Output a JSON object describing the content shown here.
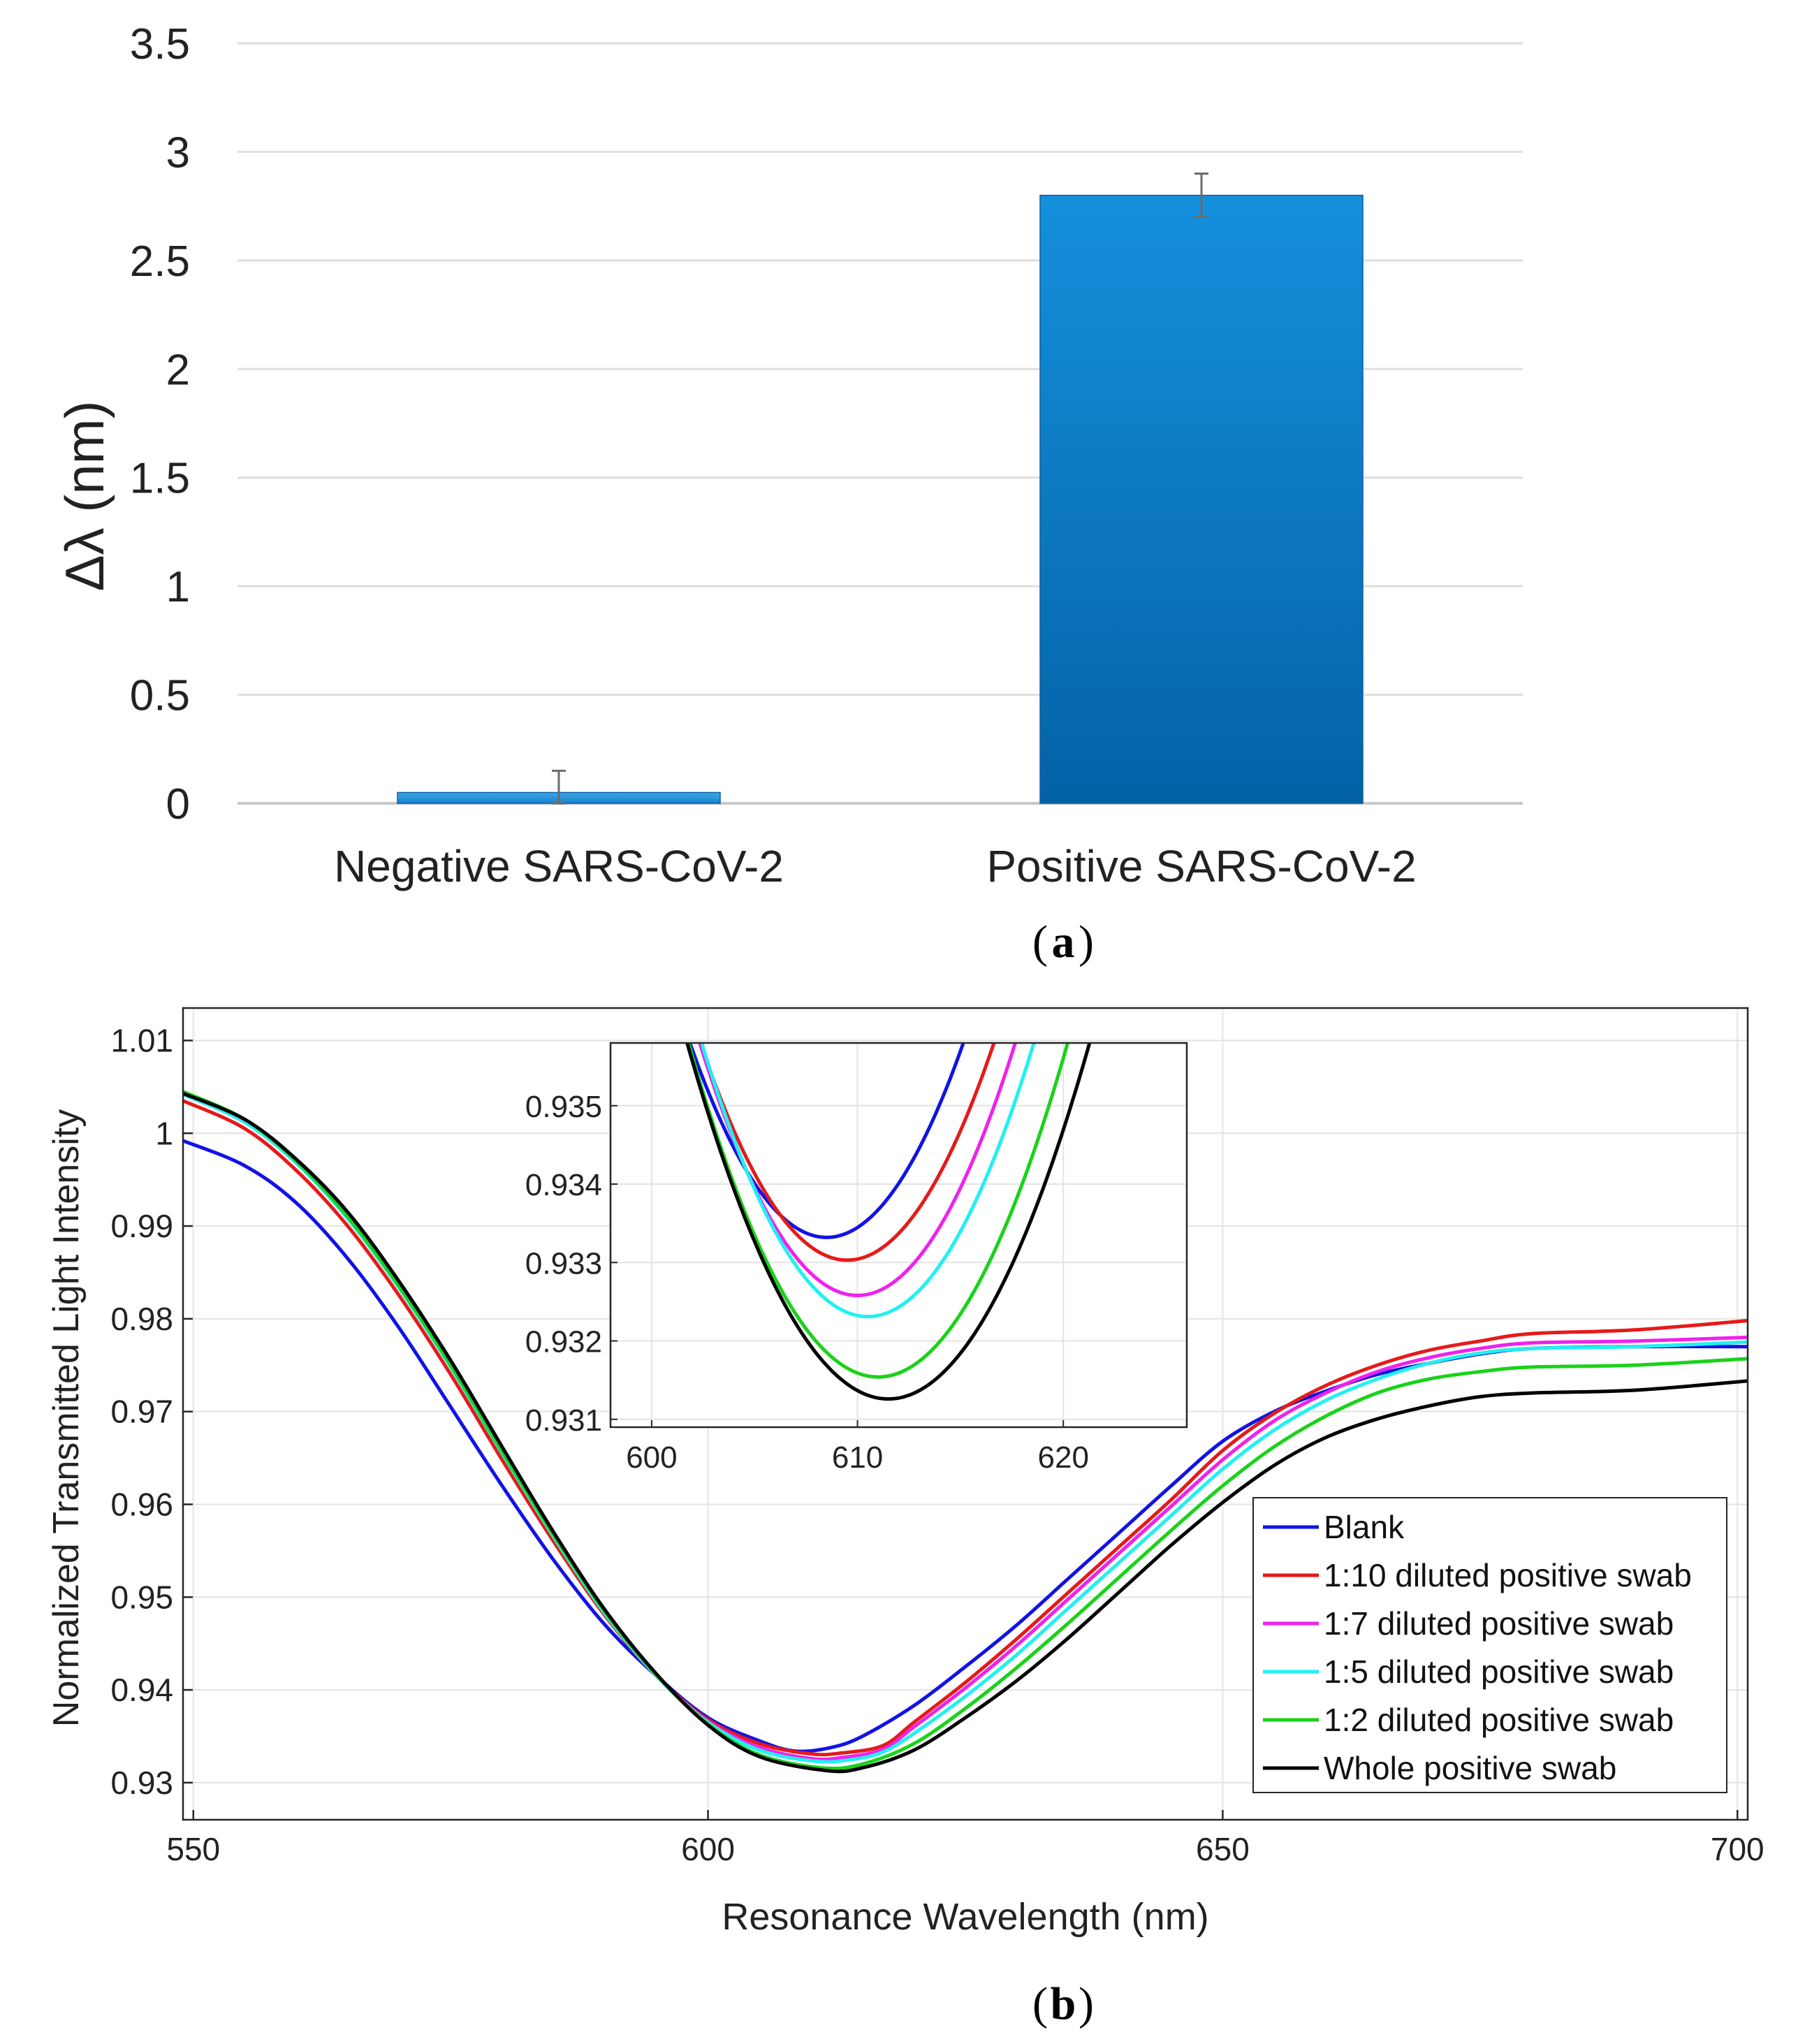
{
  "chart_data": [
    {
      "type": "bar",
      "panel_label": "a",
      "title": "",
      "xlabel": "",
      "ylabel": "Δλ (nm)",
      "ylim": [
        0,
        3.5
      ],
      "yticks": [
        "0",
        "0.5",
        "1",
        "1.5",
        "2",
        "2.5",
        "3",
        "3.5"
      ],
      "categories": [
        "Negative SARS-CoV-2",
        "Positive SARS-CoV-2"
      ],
      "values": [
        0.05,
        2.8
      ],
      "error": [
        0.1,
        0.1
      ],
      "grid": true,
      "bar_color": "#0a78c8"
    },
    {
      "type": "line",
      "panel_label": "b",
      "title": "",
      "xlabel": "Resonance Wavelength (nm)",
      "ylabel": "Normalized Transmitted Light Intensity",
      "xlim": [
        549,
        701
      ],
      "ylim": [
        0.926,
        1.0135
      ],
      "xticks": [
        "550",
        "600",
        "650",
        "700"
      ],
      "yticks": [
        "0.93",
        "0.94",
        "0.95",
        "0.96",
        "0.97",
        "0.98",
        "0.99",
        "1",
        "1.01"
      ],
      "grid": true,
      "legend_position": "bottom-right",
      "series": [
        {
          "name": "Blank",
          "color": "#1212e6",
          "x": [
            549,
            555,
            560,
            565,
            570,
            575,
            580,
            585,
            590,
            595,
            600,
            605,
            608.5,
            612,
            615,
            620,
            625,
            630,
            635,
            640,
            645,
            650,
            655,
            660,
            665,
            670,
            675,
            680,
            690,
            701
          ],
          "y": [
            0.9992,
            0.9965,
            0.9925,
            0.9865,
            0.979,
            0.9705,
            0.962,
            0.954,
            0.947,
            0.9415,
            0.937,
            0.9345,
            0.9334,
            0.9338,
            0.935,
            0.9383,
            0.9425,
            0.947,
            0.952,
            0.957,
            0.962,
            0.9668,
            0.97,
            0.9722,
            0.974,
            0.9752,
            0.9762,
            0.9768,
            0.977,
            0.977
          ]
        },
        {
          "name": "1:10 diluted positive swab",
          "color": "#e61a1a",
          "x": [
            549,
            555,
            560,
            565,
            570,
            575,
            580,
            585,
            590,
            595,
            600,
            605,
            610,
            613,
            617,
            620,
            625,
            630,
            635,
            640,
            645,
            650,
            655,
            660,
            665,
            670,
            675,
            680,
            690,
            701
          ],
          "y": [
            1.0035,
            1.0005,
            0.996,
            0.99,
            0.9825,
            0.974,
            0.9648,
            0.956,
            0.948,
            0.9415,
            0.9368,
            0.9342,
            0.9331,
            0.9332,
            0.934,
            0.9365,
            0.9408,
            0.9455,
            0.9505,
            0.9555,
            0.9605,
            0.9658,
            0.9698,
            0.9728,
            0.975,
            0.9766,
            0.9776,
            0.9784,
            0.9788,
            0.9798
          ]
        },
        {
          "name": "1:7 diluted positive swab",
          "color": "#ee22ee",
          "x": [
            549,
            555,
            560,
            565,
            570,
            575,
            580,
            585,
            590,
            595,
            600,
            605,
            610,
            613,
            617,
            620,
            625,
            630,
            635,
            640,
            645,
            650,
            655,
            660,
            665,
            670,
            675,
            680,
            690,
            701
          ],
          "y": [
            1.0042,
            1.0012,
            0.9968,
            0.9908,
            0.9833,
            0.9748,
            0.9655,
            0.9565,
            0.9482,
            0.9415,
            0.9366,
            0.9338,
            0.9326,
            0.9327,
            0.9336,
            0.936,
            0.9402,
            0.9448,
            0.9498,
            0.9548,
            0.9598,
            0.9648,
            0.969,
            0.972,
            0.9743,
            0.9758,
            0.9768,
            0.9774,
            0.9776,
            0.978
          ]
        },
        {
          "name": "1:5 diluted positive swab",
          "color": "#22f0f0",
          "x": [
            549,
            555,
            560,
            565,
            570,
            575,
            580,
            585,
            590,
            595,
            600,
            605,
            610.5,
            614,
            617,
            620,
            625,
            630,
            635,
            640,
            645,
            650,
            655,
            660,
            665,
            670,
            675,
            680,
            690,
            701
          ],
          "y": [
            1.0042,
            1.0012,
            0.9968,
            0.9908,
            0.9833,
            0.9748,
            0.9655,
            0.9565,
            0.9482,
            0.9415,
            0.9365,
            0.9335,
            0.9323,
            0.9325,
            0.9333,
            0.9353,
            0.9393,
            0.9438,
            0.9488,
            0.9538,
            0.9588,
            0.9638,
            0.968,
            0.9712,
            0.9735,
            0.9752,
            0.9763,
            0.9768,
            0.977,
            0.9775
          ]
        },
        {
          "name": "1:2 diluted positive swab",
          "color": "#1ad21a",
          "x": [
            549,
            555,
            560,
            565,
            570,
            575,
            580,
            585,
            590,
            595,
            600,
            605,
            611,
            615,
            620,
            625,
            630,
            635,
            640,
            645,
            650,
            655,
            660,
            665,
            670,
            675,
            680,
            690,
            701
          ],
          "y": [
            1.0045,
            1.0015,
            0.997,
            0.991,
            0.9835,
            0.975,
            0.9657,
            0.9567,
            0.9484,
            0.9416,
            0.9363,
            0.933,
            0.9316,
            0.932,
            0.9342,
            0.938,
            0.9424,
            0.9472,
            0.9522,
            0.9572,
            0.962,
            0.9662,
            0.9695,
            0.972,
            0.9735,
            0.9743,
            0.9748,
            0.975,
            0.9757
          ]
        },
        {
          "name": "Whole positive swab",
          "color": "#000000",
          "x": [
            549,
            555,
            560,
            565,
            570,
            575,
            580,
            585,
            590,
            595,
            600,
            605,
            611.5,
            615,
            620,
            625,
            630,
            635,
            640,
            645,
            650,
            655,
            660,
            665,
            670,
            675,
            680,
            690,
            701
          ],
          "y": [
            1.0043,
            1.0015,
            0.9972,
            0.9915,
            0.984,
            0.9755,
            0.9662,
            0.957,
            0.9486,
            0.9417,
            0.9362,
            0.9328,
            0.9313,
            0.9316,
            0.9335,
            0.937,
            0.941,
            0.9456,
            0.9506,
            0.9556,
            0.9602,
            0.9642,
            0.9672,
            0.9692,
            0.9706,
            0.9716,
            0.972,
            0.9723,
            0.9733
          ]
        }
      ],
      "inset": {
        "xlim": [
          598,
          626
        ],
        "ylim": [
          0.9309,
          0.9358
        ],
        "xticks": [
          "600",
          "610",
          "620"
        ],
        "yticks": [
          "0.931",
          "0.932",
          "0.933",
          "0.934",
          "0.935"
        ],
        "series": [
          {
            "name": "Blank",
            "center": 608.5,
            "min": 0.93332,
            "a": 5.62e-05
          },
          {
            "name": "1:10 diluted positive swab",
            "center": 609.5,
            "min": 0.93303,
            "a": 5.45e-05
          },
          {
            "name": "1:7 diluted positive swab",
            "center": 610.0,
            "min": 0.93258,
            "a": 5.48e-05
          },
          {
            "name": "1:5 diluted positive swab",
            "center": 610.5,
            "min": 0.93231,
            "a": 5.36e-05
          },
          {
            "name": "1:2 diluted positive swab",
            "center": 611.0,
            "min": 0.93154,
            "a": 5.02e-05
          },
          {
            "name": "Whole positive swab",
            "center": 611.5,
            "min": 0.93126,
            "a": 4.75e-05
          }
        ]
      }
    }
  ]
}
